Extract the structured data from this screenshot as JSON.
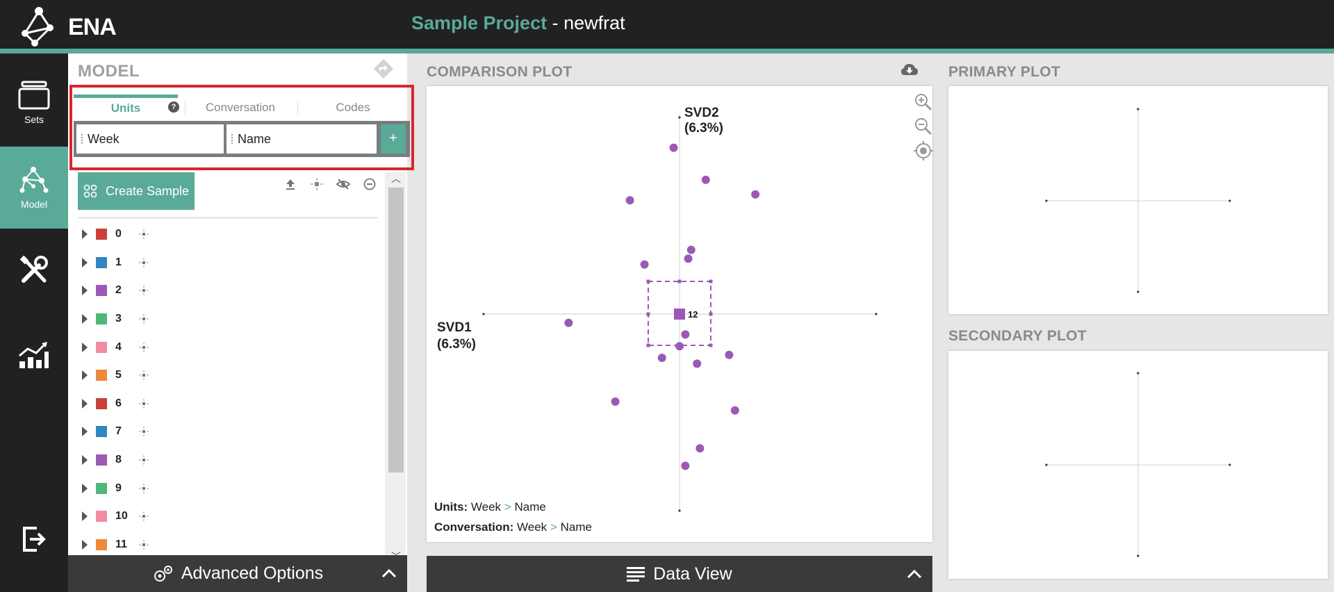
{
  "app": {
    "logo_text": "ENA",
    "project_name": "Sample Project",
    "project_separator": " - ",
    "model_name": "newfrat"
  },
  "colors": {
    "accent": "#5aaa98",
    "topbar": "#212121",
    "highlight_border": "#d9262e",
    "point": "#9b59b6"
  },
  "nav": {
    "items": [
      {
        "label": "Sets",
        "icon": "stack-icon",
        "active": false
      },
      {
        "label": "Model",
        "icon": "network-icon",
        "active": true
      },
      {
        "label": "",
        "icon": "tools-icon",
        "active": false
      },
      {
        "label": "",
        "icon": "chart-icon",
        "active": false
      },
      {
        "label": "",
        "icon": "exit-icon",
        "active": false
      }
    ]
  },
  "model": {
    "title": "MODEL",
    "tabs": [
      {
        "label": "Units",
        "active": true
      },
      {
        "label": "Conversation",
        "active": false
      },
      {
        "label": "Codes",
        "active": false
      }
    ],
    "help_label": "?",
    "units": [
      "Week",
      "Name"
    ],
    "add_label": "+",
    "create_sample_label": "Create Sample",
    "samples": [
      {
        "label": "0",
        "color": "#c9403a"
      },
      {
        "label": "1",
        "color": "#2f86c1"
      },
      {
        "label": "2",
        "color": "#9b59b6"
      },
      {
        "label": "3",
        "color": "#4cb87a"
      },
      {
        "label": "4",
        "color": "#f08ca0"
      },
      {
        "label": "5",
        "color": "#f0883a"
      },
      {
        "label": "6",
        "color": "#c9403a"
      },
      {
        "label": "7",
        "color": "#2f86c1"
      },
      {
        "label": "8",
        "color": "#9b59b6"
      },
      {
        "label": "9",
        "color": "#4cb87a"
      },
      {
        "label": "10",
        "color": "#f08ca0"
      },
      {
        "label": "11",
        "color": "#f0883a"
      }
    ],
    "advanced_label": "Advanced Options"
  },
  "comparison_plot": {
    "title": "COMPARISON PLOT",
    "x_axis_label": "SVD1",
    "x_axis_pct": "(6.3%)",
    "y_axis_label": "SVD2",
    "y_axis_pct": "(6.3%)",
    "units_caption_label": "Units:",
    "units_caption_a": "Week",
    "units_caption_b": "Name",
    "conversation_caption_label": "Conversation:",
    "conversation_caption_a": "Week",
    "conversation_caption_b": "Name",
    "caption_separator": ">",
    "points": [
      [
        -0.02,
        0.57
      ],
      [
        0.09,
        0.46
      ],
      [
        -0.17,
        0.39
      ],
      [
        0.26,
        0.41
      ],
      [
        0.04,
        0.22
      ],
      [
        0.03,
        0.19
      ],
      [
        -0.12,
        0.17
      ],
      [
        -0.38,
        -0.03
      ],
      [
        0.02,
        -0.07
      ],
      [
        0.0,
        -0.11
      ],
      [
        -0.06,
        -0.15
      ],
      [
        0.06,
        -0.17
      ],
      [
        0.17,
        -0.14
      ],
      [
        -0.22,
        -0.3
      ],
      [
        0.19,
        -0.33
      ],
      [
        0.07,
        -0.46
      ],
      [
        0.02,
        -0.52
      ]
    ],
    "mean_point": [
      0.0,
      0.0
    ],
    "mean_marker_text": "12"
  },
  "primary_plot": {
    "title": "PRIMARY PLOT"
  },
  "secondary_plot": {
    "title": "SECONDARY PLOT"
  },
  "data_view_label": "Data View"
}
